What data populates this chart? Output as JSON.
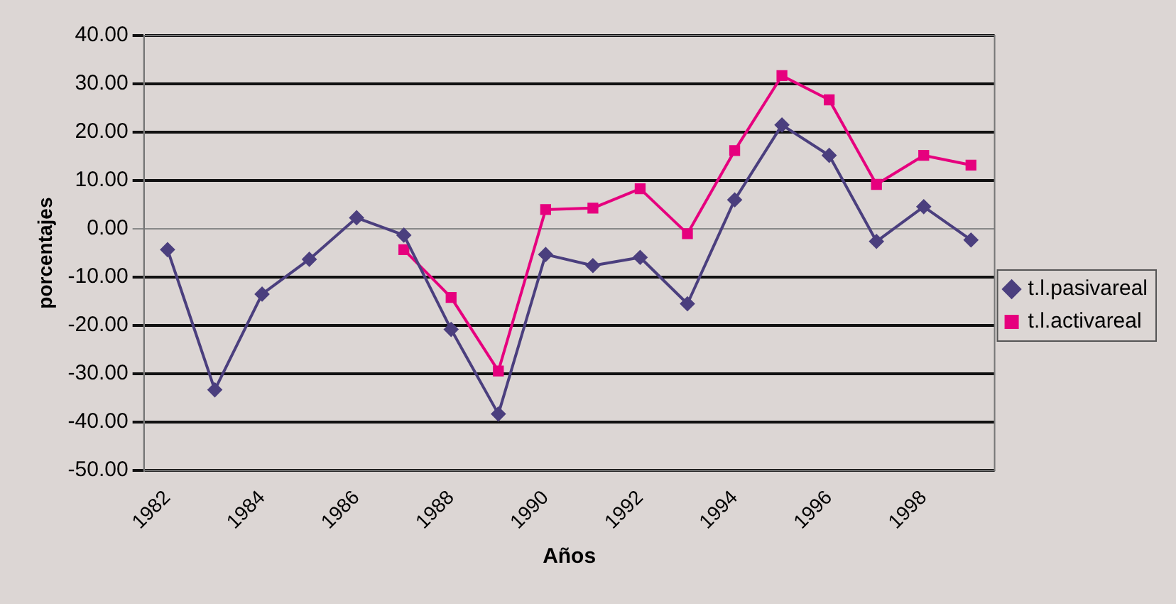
{
  "chart_data": {
    "type": "line",
    "xlabel": "Años",
    "ylabel": "porcentajes",
    "categories": [
      "1982",
      null,
      "1984",
      null,
      "1986",
      null,
      "1988",
      null,
      "1990",
      null,
      "1992",
      null,
      "1994",
      null,
      "1996",
      null,
      "1998",
      null
    ],
    "series": [
      {
        "name": "t.l.pasivareal",
        "color": "#4b3f7e",
        "marker": "diamond",
        "values": [
          -4.3,
          -33.3,
          -13.5,
          -6.3,
          2.3,
          -1.3,
          -20.8,
          -38.3,
          -5.3,
          -7.6,
          -5.9,
          -15.5,
          6.0,
          21.5,
          15.2,
          -2.6,
          4.6,
          -2.3
        ]
      },
      {
        "name": "t.l.activareal",
        "color": "#e6007e",
        "marker": "square",
        "values": [
          null,
          null,
          null,
          null,
          null,
          -4.3,
          -14.2,
          -29.4,
          4.0,
          4.3,
          8.3,
          -1.0,
          16.2,
          31.7,
          26.7,
          9.2,
          15.2,
          13.2
        ]
      }
    ],
    "ylim": [
      -50,
      40
    ],
    "yticks": [
      {
        "value": -50,
        "label": "-50.00"
      },
      {
        "value": -40,
        "label": "-40.00"
      },
      {
        "value": -30,
        "label": "-30.00"
      },
      {
        "value": -20,
        "label": "-20.00"
      },
      {
        "value": -10,
        "label": "-10.00"
      },
      {
        "value": 0,
        "label": "0.00"
      },
      {
        "value": 10,
        "label": "10.00"
      },
      {
        "value": 20,
        "label": "20.00"
      },
      {
        "value": 30,
        "label": "30.00"
      },
      {
        "value": 40,
        "label": "40.00"
      }
    ],
    "grid": "y",
    "legend": "right",
    "line_style": "solid"
  }
}
